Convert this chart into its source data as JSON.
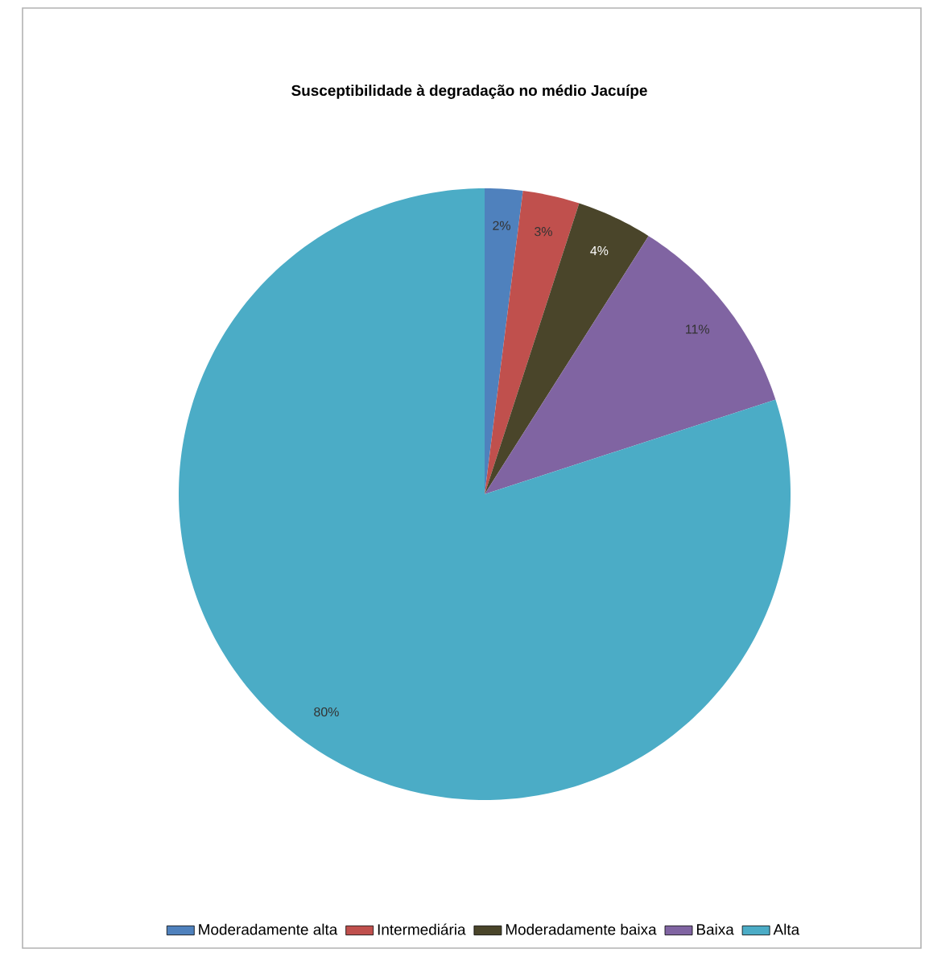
{
  "chart_data": {
    "type": "pie",
    "title": "Susceptibilidade à degradação no médio Jacuípe",
    "categories": [
      "Moderadamente alta",
      "Intermediária",
      "Moderadamente baixa",
      "Baixa",
      "Alta"
    ],
    "values": [
      2,
      3,
      4,
      11,
      80
    ],
    "colors": [
      "#4f81bd",
      "#c0504d",
      "#4a452a",
      "#8064a2",
      "#4bacc6"
    ],
    "value_labels": [
      "2%",
      "3%",
      "4%",
      "11%",
      "80%"
    ],
    "legend": "bottom"
  }
}
